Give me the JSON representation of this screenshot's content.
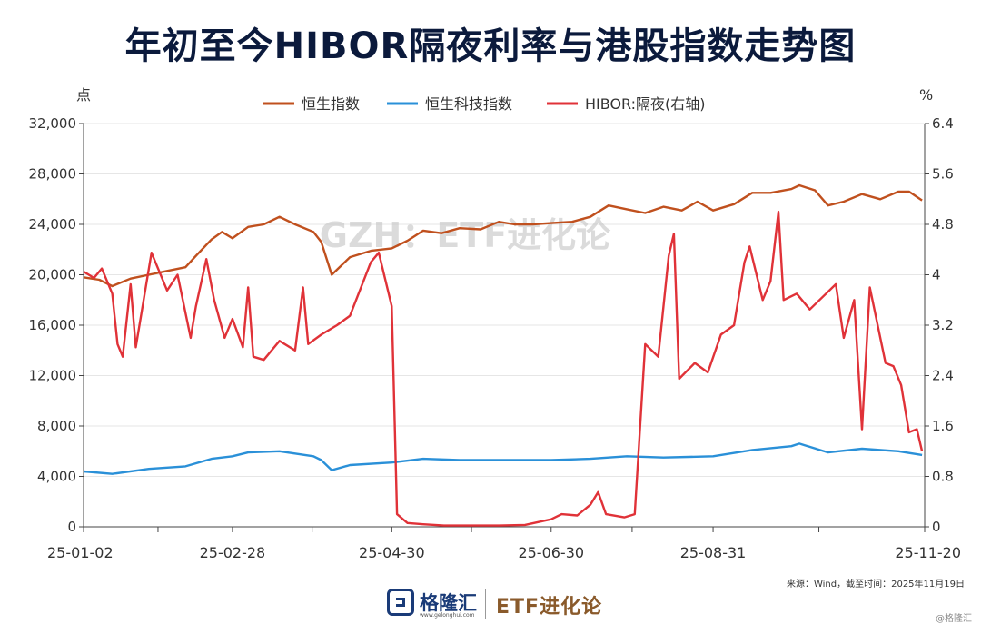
{
  "title": "年初至今HIBOR隔夜利率与港股指数走势图",
  "watermark": "GZH：ETF进化论",
  "source": "来源：Wind，截至时间：2025年11月19日",
  "footer": {
    "brand": "格隆汇",
    "brand_url": "www.gelonghui.com",
    "brand2": "ETF进化论",
    "corner": "@格隆汇"
  },
  "chart_data": {
    "type": "line",
    "y_left": {
      "unit": "点",
      "min": 0,
      "max": 32000,
      "ticks": [
        "0",
        "4,000",
        "8,000",
        "12,000",
        "16,000",
        "20,000",
        "24,000",
        "28,000",
        "32,000"
      ]
    },
    "y_right": {
      "unit": "%",
      "min": 0,
      "max": 6.4,
      "ticks": [
        "0",
        "0.8",
        "1.6",
        "2.4",
        "3.2",
        "4",
        "4.8",
        "5.6",
        "6.4"
      ]
    },
    "x": {
      "start": "2025-01-02",
      "end": "2025-11-20",
      "ticks": [
        {
          "label": "25-01-02",
          "date": "2025-01-02"
        },
        {
          "label": "25-02-28",
          "date": "2025-02-28"
        },
        {
          "label": "25-04-30",
          "date": "2025-04-30"
        },
        {
          "label": "25-06-30",
          "date": "2025-06-30"
        },
        {
          "label": "25-08-31",
          "date": "2025-08-31"
        },
        {
          "label": "25-11-20",
          "date": "2025-11-20"
        }
      ]
    },
    "grid": true,
    "legend_position": "top",
    "series": [
      {
        "name": "恒生指数",
        "axis": "left",
        "color": "#c0501e",
        "points": [
          [
            "2025-01-02",
            19800
          ],
          [
            "2025-01-08",
            19600
          ],
          [
            "2025-01-13",
            19100
          ],
          [
            "2025-01-20",
            19700
          ],
          [
            "2025-01-27",
            20000
          ],
          [
            "2025-02-03",
            20300
          ],
          [
            "2025-02-10",
            20600
          ],
          [
            "2025-02-14",
            21500
          ],
          [
            "2025-02-20",
            22800
          ],
          [
            "2025-02-24",
            23400
          ],
          [
            "2025-02-28",
            22900
          ],
          [
            "2025-03-06",
            23800
          ],
          [
            "2025-03-12",
            24000
          ],
          [
            "2025-03-18",
            24600
          ],
          [
            "2025-03-24",
            24000
          ],
          [
            "2025-03-31",
            23400
          ],
          [
            "2025-04-03",
            22600
          ],
          [
            "2025-04-07",
            20000
          ],
          [
            "2025-04-14",
            21400
          ],
          [
            "2025-04-22",
            21900
          ],
          [
            "2025-04-30",
            22100
          ],
          [
            "2025-05-06",
            22700
          ],
          [
            "2025-05-12",
            23500
          ],
          [
            "2025-05-19",
            23300
          ],
          [
            "2025-05-26",
            23700
          ],
          [
            "2025-06-03",
            23600
          ],
          [
            "2025-06-10",
            24200
          ],
          [
            "2025-06-16",
            24000
          ],
          [
            "2025-06-23",
            24000
          ],
          [
            "2025-06-30",
            24100
          ],
          [
            "2025-07-08",
            24200
          ],
          [
            "2025-07-15",
            24600
          ],
          [
            "2025-07-22",
            25500
          ],
          [
            "2025-07-29",
            25200
          ],
          [
            "2025-08-05",
            24900
          ],
          [
            "2025-08-12",
            25400
          ],
          [
            "2025-08-19",
            25100
          ],
          [
            "2025-08-25",
            25800
          ],
          [
            "2025-08-31",
            25100
          ],
          [
            "2025-09-08",
            25600
          ],
          [
            "2025-09-15",
            26500
          ],
          [
            "2025-09-22",
            26500
          ],
          [
            "2025-09-30",
            26800
          ],
          [
            "2025-10-03",
            27100
          ],
          [
            "2025-10-09",
            26700
          ],
          [
            "2025-10-14",
            25500
          ],
          [
            "2025-10-20",
            25800
          ],
          [
            "2025-10-27",
            26400
          ],
          [
            "2025-11-03",
            26000
          ],
          [
            "2025-11-10",
            26600
          ],
          [
            "2025-11-14",
            26600
          ],
          [
            "2025-11-19",
            25900
          ]
        ]
      },
      {
        "name": "恒生科技指数",
        "axis": "left",
        "color": "#2a90d8",
        "points": [
          [
            "2025-01-02",
            4400
          ],
          [
            "2025-01-13",
            4200
          ],
          [
            "2025-01-27",
            4600
          ],
          [
            "2025-02-10",
            4800
          ],
          [
            "2025-02-20",
            5400
          ],
          [
            "2025-02-28",
            5600
          ],
          [
            "2025-03-06",
            5900
          ],
          [
            "2025-03-18",
            6000
          ],
          [
            "2025-03-31",
            5600
          ],
          [
            "2025-04-03",
            5300
          ],
          [
            "2025-04-07",
            4500
          ],
          [
            "2025-04-14",
            4900
          ],
          [
            "2025-04-30",
            5100
          ],
          [
            "2025-05-12",
            5400
          ],
          [
            "2025-05-26",
            5300
          ],
          [
            "2025-06-10",
            5300
          ],
          [
            "2025-06-30",
            5300
          ],
          [
            "2025-07-15",
            5400
          ],
          [
            "2025-07-29",
            5600
          ],
          [
            "2025-08-12",
            5500
          ],
          [
            "2025-08-31",
            5600
          ],
          [
            "2025-09-15",
            6100
          ],
          [
            "2025-09-30",
            6400
          ],
          [
            "2025-10-03",
            6600
          ],
          [
            "2025-10-14",
            5900
          ],
          [
            "2025-10-27",
            6200
          ],
          [
            "2025-11-10",
            6000
          ],
          [
            "2025-11-19",
            5700
          ]
        ]
      },
      {
        "name": "HIBOR:隔夜(右轴)",
        "axis": "right",
        "color": "#e03238",
        "points": [
          [
            "2025-01-02",
            4.05
          ],
          [
            "2025-01-06",
            3.95
          ],
          [
            "2025-01-09",
            4.1
          ],
          [
            "2025-01-13",
            3.7
          ],
          [
            "2025-01-15",
            2.9
          ],
          [
            "2025-01-17",
            2.7
          ],
          [
            "2025-01-20",
            3.85
          ],
          [
            "2025-01-22",
            2.85
          ],
          [
            "2025-01-28",
            4.35
          ],
          [
            "2025-02-03",
            3.75
          ],
          [
            "2025-02-07",
            4.0
          ],
          [
            "2025-02-12",
            3.0
          ],
          [
            "2025-02-14",
            3.5
          ],
          [
            "2025-02-18",
            4.25
          ],
          [
            "2025-02-21",
            3.6
          ],
          [
            "2025-02-25",
            3.0
          ],
          [
            "2025-02-28",
            3.3
          ],
          [
            "2025-03-04",
            2.85
          ],
          [
            "2025-03-06",
            3.8
          ],
          [
            "2025-03-08",
            2.7
          ],
          [
            "2025-03-12",
            2.65
          ],
          [
            "2025-03-18",
            2.95
          ],
          [
            "2025-03-24",
            2.8
          ],
          [
            "2025-03-27",
            3.8
          ],
          [
            "2025-03-29",
            2.9
          ],
          [
            "2025-04-03",
            3.05
          ],
          [
            "2025-04-09",
            3.2
          ],
          [
            "2025-04-14",
            3.35
          ],
          [
            "2025-04-22",
            4.2
          ],
          [
            "2025-04-25",
            4.35
          ],
          [
            "2025-04-30",
            3.5
          ],
          [
            "2025-05-02",
            0.2
          ],
          [
            "2025-05-06",
            0.06
          ],
          [
            "2025-05-12",
            0.04
          ],
          [
            "2025-05-20",
            0.02
          ],
          [
            "2025-06-10",
            0.02
          ],
          [
            "2025-06-20",
            0.03
          ],
          [
            "2025-06-30",
            0.12
          ],
          [
            "2025-07-04",
            0.2
          ],
          [
            "2025-07-10",
            0.18
          ],
          [
            "2025-07-15",
            0.35
          ],
          [
            "2025-07-18",
            0.55
          ],
          [
            "2025-07-21",
            0.2
          ],
          [
            "2025-07-28",
            0.15
          ],
          [
            "2025-08-01",
            0.2
          ],
          [
            "2025-08-05",
            2.9
          ],
          [
            "2025-08-10",
            2.7
          ],
          [
            "2025-08-14",
            4.3
          ],
          [
            "2025-08-16",
            4.65
          ],
          [
            "2025-08-18",
            2.35
          ],
          [
            "2025-08-24",
            2.6
          ],
          [
            "2025-08-29",
            2.45
          ],
          [
            "2025-09-03",
            3.05
          ],
          [
            "2025-09-08",
            3.2
          ],
          [
            "2025-09-12",
            4.2
          ],
          [
            "2025-09-14",
            4.45
          ],
          [
            "2025-09-19",
            3.6
          ],
          [
            "2025-09-22",
            3.9
          ],
          [
            "2025-09-25",
            5.0
          ],
          [
            "2025-09-27",
            3.6
          ],
          [
            "2025-10-02",
            3.7
          ],
          [
            "2025-10-07",
            3.45
          ],
          [
            "2025-10-12",
            3.65
          ],
          [
            "2025-10-17",
            3.85
          ],
          [
            "2025-10-20",
            3.0
          ],
          [
            "2025-10-24",
            3.6
          ],
          [
            "2025-10-27",
            1.55
          ],
          [
            "2025-10-30",
            3.8
          ],
          [
            "2025-11-05",
            2.6
          ],
          [
            "2025-11-08",
            2.55
          ],
          [
            "2025-11-11",
            2.25
          ],
          [
            "2025-11-14",
            1.5
          ],
          [
            "2025-11-17",
            1.55
          ],
          [
            "2025-11-19",
            1.2
          ]
        ]
      }
    ]
  }
}
